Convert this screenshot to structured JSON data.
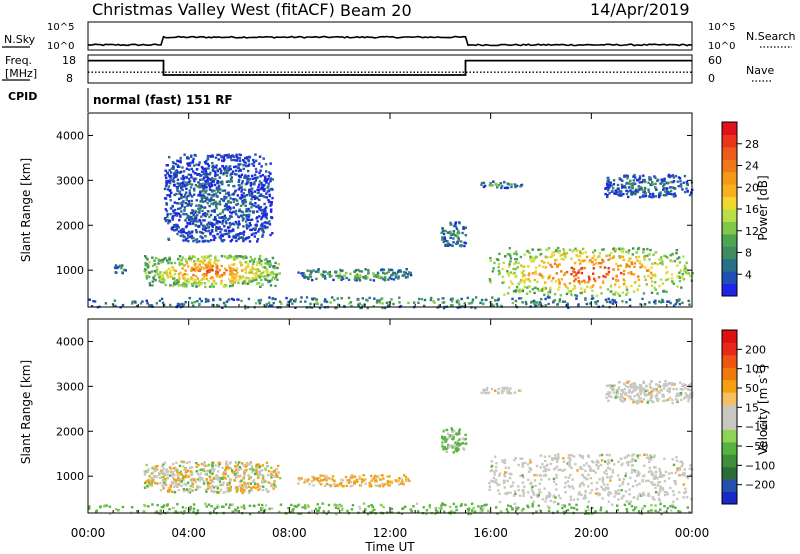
{
  "header": {
    "station": "Christmas Valley West (fitACF)",
    "beam": "Beam 20",
    "date": "14/Apr/2019"
  },
  "labels": {
    "nsky": "N.Sky",
    "nsearch": "N.Search",
    "freq_line1": "Freq.",
    "freq_line2": "[MHz]",
    "nave": "Nave",
    "cpid": "CPID",
    "cpid_value": "normal (fast) 151 RF"
  },
  "noise_panel": {
    "left_ticks": [
      "10^5",
      "10^0"
    ],
    "right_ticks": [
      "10^5",
      "10^0"
    ],
    "level_start": 0.13,
    "level_mid": 0.45,
    "level_end": 0.13,
    "mid_start_hour": 3.0,
    "mid_end_hour": 15.0
  },
  "freq_panel": {
    "left_ticks": [
      "18",
      "8"
    ],
    "right_ticks": [
      "60",
      "0"
    ],
    "freq_low_mhz": 10.5,
    "freq_high_mhz": 16.5,
    "nave_level": 22,
    "switch_1_hour": 3.0,
    "switch_2_hour": 15.0
  },
  "chart_data": [
    {
      "type": "heatmap",
      "title": "",
      "xlabel": "",
      "ylabel": "Slant Range [km]",
      "x_range_hours": [
        0,
        24
      ],
      "ylim_km": [
        180,
        4500
      ],
      "yticks": [
        "1000",
        "2000",
        "3000",
        "4000"
      ],
      "colorbar": {
        "label": "Power [dB]",
        "ticks": [
          "4",
          "8",
          "12",
          "16",
          "20",
          "24",
          "28"
        ],
        "colors": [
          "#1f24e8",
          "#1d4fb5",
          "#2a6f8a",
          "#3f8a5e",
          "#4ea653",
          "#7fc84a",
          "#b8df46",
          "#f0d830",
          "#f6b020",
          "#f59a18",
          "#f07818",
          "#ee5a1b",
          "#e9351b",
          "#e0101d"
        ]
      },
      "regions": [
        {
          "t0": 2.2,
          "t1": 7.6,
          "r_lo": 650,
          "r_hi": 1350,
          "level": 0.72
        },
        {
          "t0": 8.3,
          "t1": 12.8,
          "r_lo": 800,
          "r_hi": 1050,
          "level": 0.35
        },
        {
          "t0": 1.0,
          "t1": 1.5,
          "r_lo": 950,
          "r_hi": 1150,
          "level": 0.25
        },
        {
          "t0": 14.0,
          "t1": 15.0,
          "r_lo": 1550,
          "r_hi": 2100,
          "level": 0.25
        },
        {
          "t0": 15.9,
          "t1": 24.0,
          "r_lo": 450,
          "r_hi": 1520,
          "level": 0.78
        },
        {
          "t0": 15.5,
          "t1": 17.2,
          "r_lo": 2850,
          "r_hi": 3000,
          "level": 0.3
        },
        {
          "t0": 20.5,
          "t1": 24.0,
          "r_lo": 2650,
          "r_hi": 3150,
          "level": 0.2
        },
        {
          "t0": 3.0,
          "t1": 7.3,
          "r_lo": 1650,
          "r_hi": 3600,
          "level": 0.15
        },
        {
          "t0": 0.0,
          "t1": 24.0,
          "r_lo": 180,
          "r_hi": 420,
          "level": 0.3
        }
      ]
    },
    {
      "type": "heatmap",
      "title": "",
      "xlabel": "Time UT",
      "ylabel": "Slant Range [km]",
      "x_range_hours": [
        0,
        24
      ],
      "ylim_km": [
        180,
        4500
      ],
      "yticks": [
        "1000",
        "2000",
        "3000",
        "4000"
      ],
      "xticks": [
        "00:00",
        "04:00",
        "08:00",
        "12:00",
        "16:00",
        "20:00",
        "00:00"
      ],
      "colorbar": {
        "label": "Velocity",
        "unit": "m s",
        "unit_exp": "-1",
        "ticks": [
          "200",
          "100",
          "50",
          "15",
          "−15",
          "−50",
          "−100",
          "−200"
        ],
        "colors": [
          "#1b28c8",
          "#2350a8",
          "#2e6b3a",
          "#3f8f3a",
          "#58b240",
          "#8fd356",
          "#c8c8c0",
          "#c8c8c0",
          "#f5c060",
          "#f5a010",
          "#f07a10",
          "#ee5512",
          "#e8281a",
          "#e01010"
        ]
      },
      "regions": [
        {
          "t0": 2.2,
          "t1": 7.6,
          "r_lo": 650,
          "r_hi": 1350,
          "mix": "grey-orange-green"
        },
        {
          "t0": 8.3,
          "t1": 12.8,
          "r_lo": 800,
          "r_hi": 1050,
          "mix": "orange-grey"
        },
        {
          "t0": 15.9,
          "t1": 24.0,
          "r_lo": 450,
          "r_hi": 1520,
          "mix": "grey"
        },
        {
          "t0": 14.0,
          "t1": 15.0,
          "r_lo": 1550,
          "r_hi": 2100,
          "mix": "green-grey"
        },
        {
          "t0": 15.5,
          "t1": 17.2,
          "r_lo": 2850,
          "r_hi": 3000,
          "mix": "grey"
        },
        {
          "t0": 20.5,
          "t1": 24.0,
          "r_lo": 2650,
          "r_hi": 3150,
          "mix": "grey"
        },
        {
          "t0": 0.0,
          "t1": 24.0,
          "r_lo": 180,
          "r_hi": 420,
          "mix": "green"
        }
      ]
    }
  ]
}
